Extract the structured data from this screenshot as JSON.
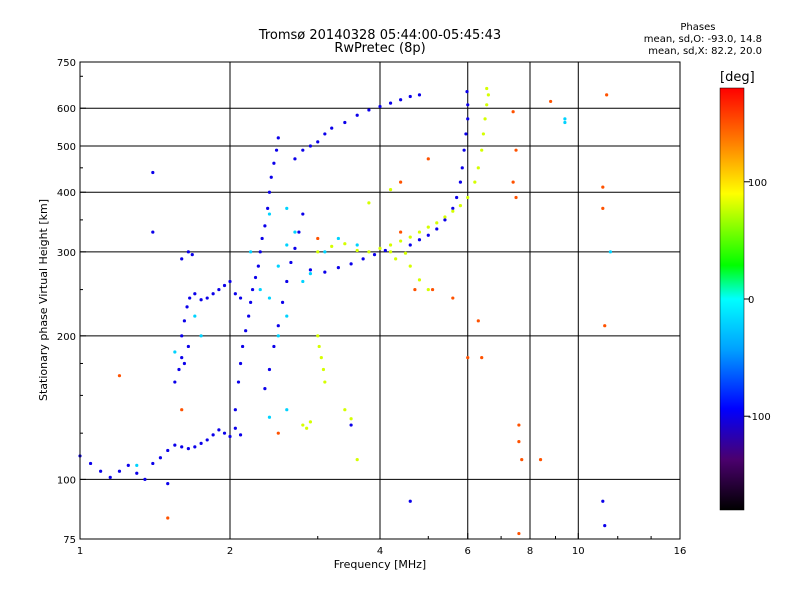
{
  "header": {
    "title_line1": "Tromsø 20140328 05:44:00-05:45:43",
    "title_line2": "RwPretec (8p)"
  },
  "phases_box": {
    "heading": "Phases",
    "line_o": "mean, sd,O: -93.0, 14.8",
    "line_x": "mean, sd,X: 82.2, 20.0"
  },
  "colorbar": {
    "label": "[deg]",
    "ticks": [
      {
        "value": 100,
        "label": "100"
      },
      {
        "value": 0,
        "label": "0"
      },
      {
        "value": -100,
        "label": "-100"
      }
    ],
    "range": [
      -180,
      180
    ]
  },
  "chart_data": {
    "type": "scatter",
    "title": "Tromsø 20140328 05:44:00-05:45:43",
    "subtitle": "RwPretec (8p)",
    "xlabel": "Frequency [MHz]",
    "ylabel": "Stationary phase Virtual Height [km]",
    "xscale": "log",
    "yscale": "log",
    "xlim": [
      1,
      16
    ],
    "ylim": [
      75,
      750
    ],
    "grid": true,
    "xticks": [
      {
        "value": 1,
        "label": "1"
      },
      {
        "value": 2,
        "label": "2"
      },
      {
        "value": 4,
        "label": "4"
      },
      {
        "value": 6,
        "label": "6"
      },
      {
        "value": 8,
        "label": "8"
      },
      {
        "value": 10,
        "label": "10"
      },
      {
        "value": 16,
        "label": "16"
      }
    ],
    "xgrid": [
      2,
      4,
      6,
      8,
      10
    ],
    "yticks": [
      {
        "value": 75,
        "label": "75"
      },
      {
        "value": 100,
        "label": "100"
      },
      {
        "value": 200,
        "label": "200"
      },
      {
        "value": 300,
        "label": "300"
      },
      {
        "value": 400,
        "label": "400"
      },
      {
        "value": 500,
        "label": "500"
      },
      {
        "value": 600,
        "label": "600"
      },
      {
        "value": 750,
        "label": "750"
      }
    ],
    "ygrid": [
      100,
      200,
      300,
      400,
      500,
      600
    ],
    "series": [
      {
        "mode": "O",
        "phase": -100,
        "points": [
          [
            1.0,
            112
          ],
          [
            1.05,
            108
          ],
          [
            1.1,
            104
          ],
          [
            1.15,
            101
          ],
          [
            1.2,
            104
          ],
          [
            1.25,
            107
          ],
          [
            1.3,
            103
          ],
          [
            1.35,
            100
          ],
          [
            1.4,
            108
          ],
          [
            1.45,
            111
          ],
          [
            1.5,
            115
          ],
          [
            1.55,
            118
          ],
          [
            1.6,
            117
          ],
          [
            1.65,
            116
          ],
          [
            1.7,
            117
          ],
          [
            1.75,
            119
          ],
          [
            1.8,
            121
          ],
          [
            1.85,
            124
          ],
          [
            1.9,
            127
          ],
          [
            1.95,
            125
          ],
          [
            2.0,
            123
          ],
          [
            2.05,
            128
          ],
          [
            2.1,
            124
          ],
          [
            1.55,
            160
          ],
          [
            1.58,
            170
          ],
          [
            1.6,
            180
          ],
          [
            1.62,
            175
          ],
          [
            1.65,
            190
          ],
          [
            1.6,
            200
          ],
          [
            1.62,
            215
          ],
          [
            1.64,
            230
          ],
          [
            1.66,
            240
          ],
          [
            1.7,
            245
          ],
          [
            1.75,
            238
          ],
          [
            1.8,
            240
          ],
          [
            1.85,
            245
          ],
          [
            1.9,
            250
          ],
          [
            1.95,
            255
          ],
          [
            2.0,
            260
          ],
          [
            2.05,
            245
          ],
          [
            2.1,
            240
          ],
          [
            1.6,
            290
          ],
          [
            1.65,
            300
          ],
          [
            1.68,
            296
          ],
          [
            2.05,
            140
          ],
          [
            2.08,
            160
          ],
          [
            2.1,
            175
          ],
          [
            2.12,
            190
          ],
          [
            2.15,
            205
          ],
          [
            2.18,
            220
          ],
          [
            2.2,
            235
          ],
          [
            2.22,
            250
          ],
          [
            2.25,
            265
          ],
          [
            2.28,
            280
          ],
          [
            2.3,
            300
          ],
          [
            2.32,
            320
          ],
          [
            2.35,
            340
          ],
          [
            2.38,
            370
          ],
          [
            2.4,
            400
          ],
          [
            2.42,
            430
          ],
          [
            2.45,
            460
          ],
          [
            2.48,
            490
          ],
          [
            2.5,
            520
          ],
          [
            2.35,
            155
          ],
          [
            2.4,
            170
          ],
          [
            2.45,
            190
          ],
          [
            2.5,
            210
          ],
          [
            2.55,
            235
          ],
          [
            2.6,
            260
          ],
          [
            2.65,
            285
          ],
          [
            2.7,
            305
          ],
          [
            2.75,
            330
          ],
          [
            2.8,
            360
          ],
          [
            2.7,
            470
          ],
          [
            2.8,
            490
          ],
          [
            2.9,
            500
          ],
          [
            3.0,
            510
          ],
          [
            3.1,
            530
          ],
          [
            3.2,
            545
          ],
          [
            3.4,
            560
          ],
          [
            3.6,
            580
          ],
          [
            3.8,
            595
          ],
          [
            4.0,
            605
          ],
          [
            4.2,
            615
          ],
          [
            4.4,
            625
          ],
          [
            4.6,
            635
          ],
          [
            4.8,
            640
          ],
          [
            2.9,
            275
          ],
          [
            3.1,
            272
          ],
          [
            3.3,
            278
          ],
          [
            3.5,
            283
          ],
          [
            3.7,
            290
          ],
          [
            3.9,
            296
          ],
          [
            4.1,
            302
          ],
          [
            4.6,
            310
          ],
          [
            4.8,
            318
          ],
          [
            5.0,
            325
          ],
          [
            5.2,
            335
          ],
          [
            5.4,
            350
          ],
          [
            5.6,
            370
          ],
          [
            5.7,
            390
          ],
          [
            5.8,
            420
          ],
          [
            5.85,
            450
          ],
          [
            5.9,
            490
          ],
          [
            5.95,
            530
          ],
          [
            6.0,
            570
          ],
          [
            6.0,
            610
          ],
          [
            5.98,
            650
          ],
          [
            3.5,
            130
          ],
          [
            4.6,
            90
          ],
          [
            11.2,
            90
          ],
          [
            11.3,
            80
          ],
          [
            1.4,
            440
          ],
          [
            1.4,
            330
          ],
          [
            1.5,
            98
          ]
        ]
      },
      {
        "mode": "O",
        "phase": -20,
        "points": [
          [
            2.3,
            250
          ],
          [
            2.4,
            240
          ],
          [
            2.5,
            280
          ],
          [
            2.6,
            310
          ],
          [
            2.7,
            330
          ],
          [
            2.8,
            260
          ],
          [
            2.9,
            270
          ],
          [
            3.1,
            300
          ],
          [
            3.3,
            320
          ],
          [
            3.6,
            310
          ],
          [
            2.2,
            300
          ],
          [
            2.4,
            360
          ],
          [
            2.6,
            370
          ],
          [
            2.5,
            200
          ],
          [
            2.6,
            220
          ],
          [
            1.7,
            220
          ],
          [
            1.75,
            200
          ],
          [
            1.55,
            185
          ],
          [
            2.4,
            135
          ],
          [
            2.6,
            140
          ],
          [
            1.3,
            107
          ],
          [
            9.4,
            560
          ],
          [
            9.4,
            570
          ],
          [
            11.6,
            300
          ]
        ]
      },
      {
        "mode": "X",
        "phase": 80,
        "points": [
          [
            3.0,
            300
          ],
          [
            3.2,
            308
          ],
          [
            3.4,
            312
          ],
          [
            3.6,
            302
          ],
          [
            3.8,
            300
          ],
          [
            4.0,
            305
          ],
          [
            4.2,
            310
          ],
          [
            4.4,
            316
          ],
          [
            4.6,
            322
          ],
          [
            4.8,
            330
          ],
          [
            5.0,
            338
          ],
          [
            5.2,
            345
          ],
          [
            5.4,
            355
          ],
          [
            5.6,
            365
          ],
          [
            5.8,
            375
          ],
          [
            6.0,
            390
          ],
          [
            6.2,
            420
          ],
          [
            6.3,
            450
          ],
          [
            6.4,
            490
          ],
          [
            6.45,
            530
          ],
          [
            6.5,
            570
          ],
          [
            6.55,
            610
          ],
          [
            6.6,
            640
          ],
          [
            6.55,
            660
          ],
          [
            3.0,
            200
          ],
          [
            3.02,
            190
          ],
          [
            3.05,
            180
          ],
          [
            3.08,
            170
          ],
          [
            3.1,
            160
          ],
          [
            2.8,
            130
          ],
          [
            2.85,
            128
          ],
          [
            2.9,
            132
          ],
          [
            3.4,
            140
          ],
          [
            3.5,
            134
          ],
          [
            3.6,
            110
          ],
          [
            4.2,
            300
          ],
          [
            4.3,
            290
          ],
          [
            4.5,
            298
          ],
          [
            4.6,
            280
          ],
          [
            4.8,
            262
          ],
          [
            5.0,
            250
          ],
          [
            3.8,
            380
          ],
          [
            4.2,
            405
          ]
        ]
      },
      {
        "mode": "noise",
        "phase": 150,
        "points": [
          [
            3.0,
            320
          ],
          [
            4.4,
            330
          ],
          [
            4.7,
            250
          ],
          [
            5.1,
            250
          ],
          [
            5.6,
            240
          ],
          [
            6.0,
            180
          ],
          [
            7.4,
            590
          ],
          [
            7.5,
            490
          ],
          [
            7.4,
            420
          ],
          [
            7.5,
            390
          ],
          [
            7.6,
            130
          ],
          [
            7.6,
            120
          ],
          [
            7.7,
            110
          ],
          [
            7.6,
            77
          ],
          [
            11.2,
            410
          ],
          [
            11.2,
            370
          ],
          [
            11.3,
            210
          ],
          [
            11.4,
            640
          ],
          [
            1.5,
            83
          ],
          [
            1.6,
            140
          ],
          [
            2.5,
            125
          ],
          [
            4.4,
            420
          ],
          [
            5.0,
            470
          ],
          [
            6.3,
            215
          ],
          [
            6.4,
            180
          ],
          [
            8.4,
            110
          ],
          [
            8.8,
            620
          ],
          [
            1.2,
            165
          ]
        ]
      }
    ]
  }
}
